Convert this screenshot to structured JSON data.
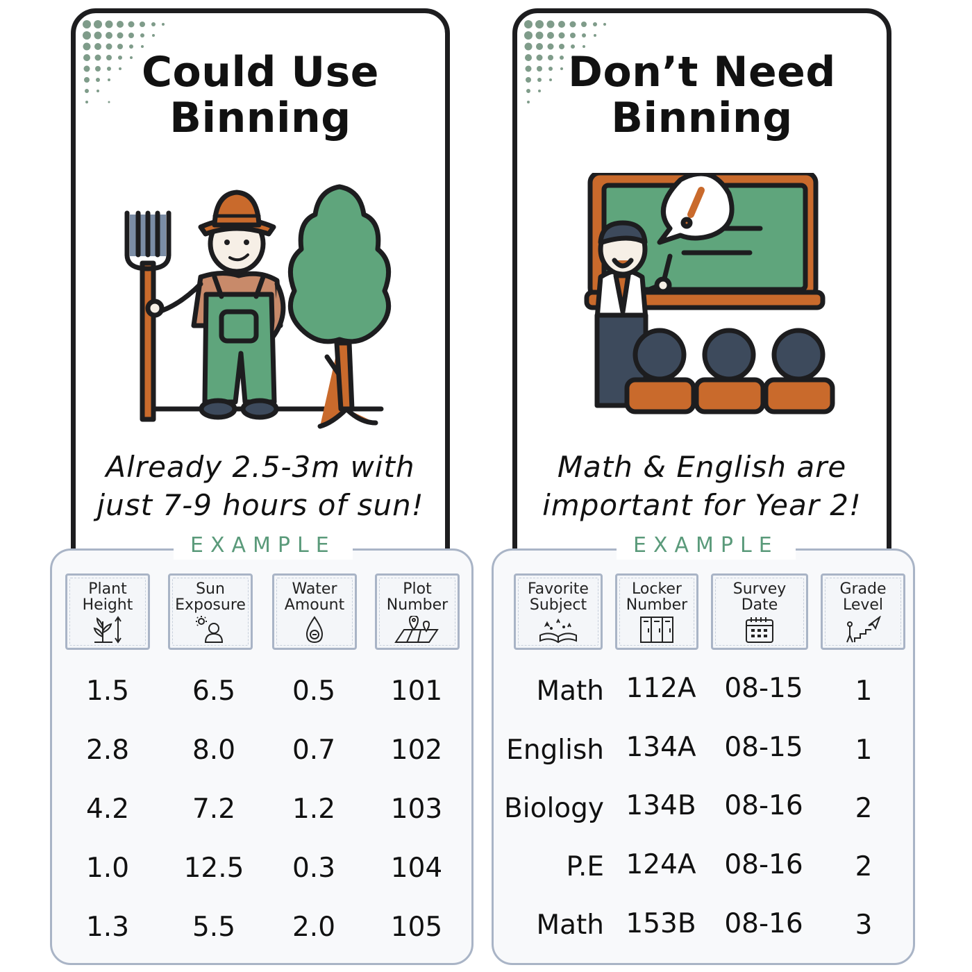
{
  "left_card": {
    "title_line1": "Could Use",
    "title_line2": "Binning",
    "caption_line1": "Already 2.5-3m with",
    "caption_line2": "just 7-9 hours of sun!"
  },
  "right_card": {
    "title_line1": "Don’t Need",
    "title_line2": "Binning",
    "caption_line1": "Math & English are",
    "caption_line2": "important for Year 2!"
  },
  "left_example": {
    "label": "EXAMPLE",
    "headers": [
      {
        "line1": "Plant",
        "line2": "Height",
        "icon": "plant-height-icon"
      },
      {
        "line1": "Sun",
        "line2": "Exposure",
        "icon": "sun-exposure-icon"
      },
      {
        "line1": "Water",
        "line2": "Amount",
        "icon": "water-drop-icon"
      },
      {
        "line1": "Plot",
        "line2": "Number",
        "icon": "map-pin-icon"
      }
    ],
    "rows": [
      [
        "1.5",
        "6.5",
        "0.5",
        "101"
      ],
      [
        "2.8",
        "8.0",
        "0.7",
        "102"
      ],
      [
        "4.2",
        "7.2",
        "1.2",
        "103"
      ],
      [
        "1.0",
        "12.5",
        "0.3",
        "104"
      ],
      [
        "1.3",
        "5.5",
        "2.0",
        "105"
      ]
    ]
  },
  "right_example": {
    "label": "EXAMPLE",
    "headers": [
      {
        "line1": "Favorite",
        "line2": "Subject",
        "icon": "open-book-icon"
      },
      {
        "line1": "Locker",
        "line2": "Number",
        "icon": "locker-icon"
      },
      {
        "line1": "Survey",
        "line2": "Date",
        "icon": "calendar-icon"
      },
      {
        "line1": "Grade",
        "line2": "Level",
        "icon": "stairs-icon"
      }
    ],
    "rows": [
      [
        "Math",
        "112A",
        "08-15",
        "1"
      ],
      [
        "English",
        "134A",
        "08-15",
        "1"
      ],
      [
        "Biology",
        "134B",
        "08-16",
        "2"
      ],
      [
        "P.E",
        "124A",
        "08-16",
        "2"
      ],
      [
        "Math",
        "153B",
        "08-16",
        "3"
      ]
    ]
  },
  "colors": {
    "accent_green": "#5a9a7a",
    "border_gray": "#a9b4c6",
    "ink": "#1d1d1f",
    "rust": "#c96a2c",
    "blackboard": "#5fa57c"
  }
}
